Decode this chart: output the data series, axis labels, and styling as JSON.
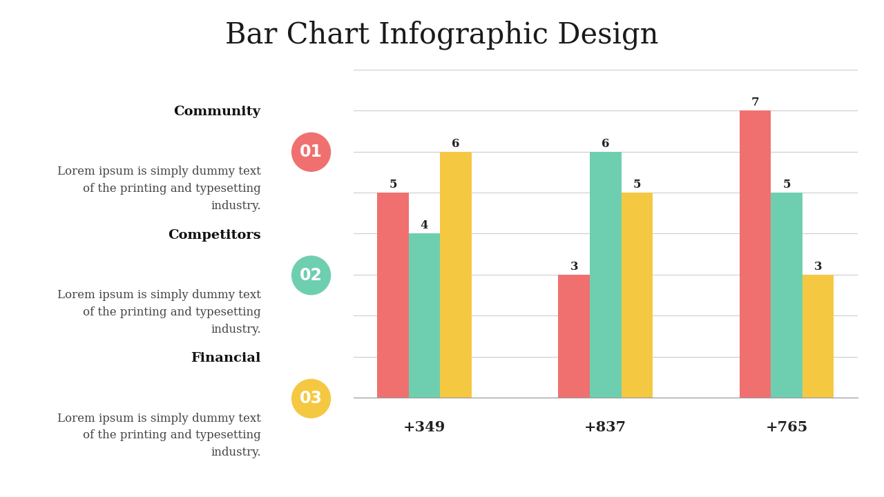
{
  "title": "Bar Chart Infographic Design",
  "title_fontsize": 30,
  "title_font": "serif",
  "background_color": "#ffffff",
  "categories_left": [
    "Community",
    "Competitors",
    "Financial"
  ],
  "circle_labels": [
    "01",
    "02",
    "03"
  ],
  "circle_colors": [
    "#f07070",
    "#6ecfb0",
    "#f5c842"
  ],
  "body_text": "Lorem ipsum is simply dummy text\nof the printing and typesetting\nindustry.",
  "groups": [
    "+349",
    "+837",
    "+765"
  ],
  "series": [
    {
      "name": "Community",
      "values": [
        5,
        3,
        7
      ],
      "color": "#f07070"
    },
    {
      "name": "Competitors",
      "values": [
        4,
        6,
        5
      ],
      "color": "#6ecfb0"
    },
    {
      "name": "Financial",
      "values": [
        6,
        5,
        3
      ],
      "color": "#f5c842"
    }
  ],
  "ylim": [
    0,
    8
  ],
  "xlabel_area_color": "#e8e8e8",
  "grid_color": "#cccccc",
  "cat_fontsize": 14,
  "body_fontsize": 12,
  "bar_label_fontsize": 12,
  "group_label_fontsize": 15,
  "circle_fontsize": 17
}
